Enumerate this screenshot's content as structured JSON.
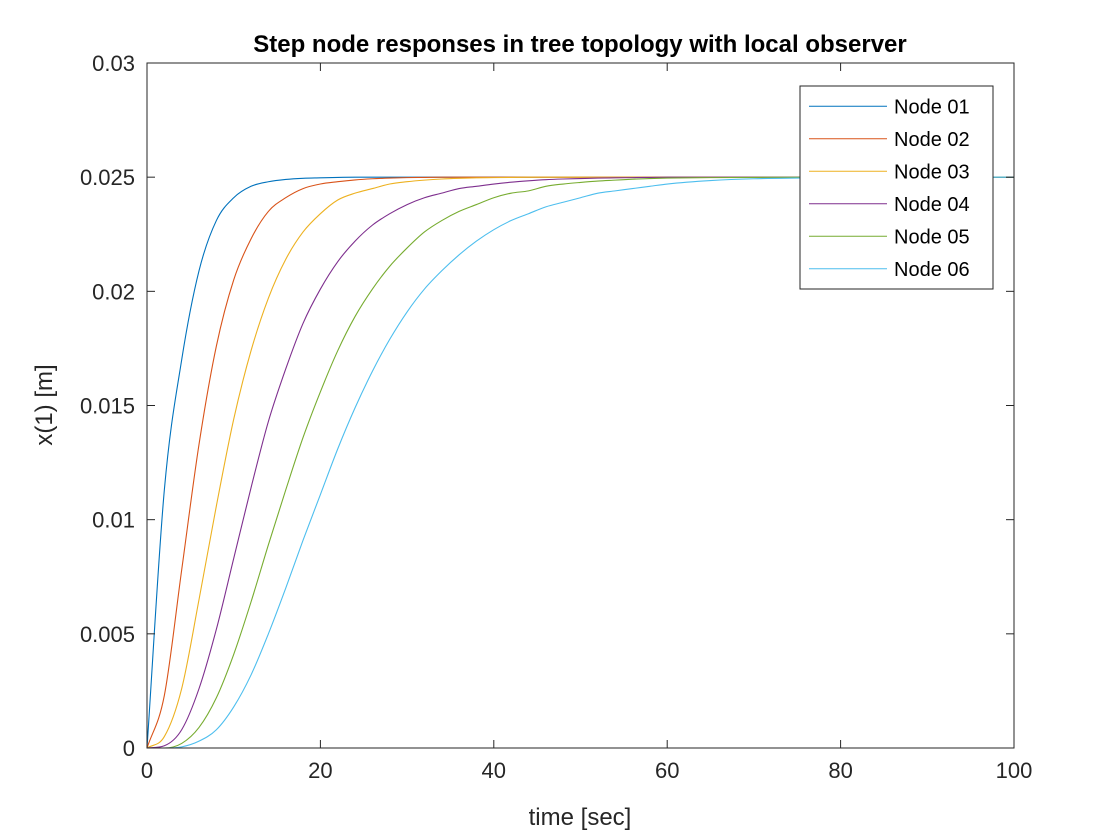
{
  "chart_data": {
    "type": "line",
    "title": "Step node responses in tree topology with local observer",
    "xlabel": "time [sec]",
    "ylabel": "x(1) [m]",
    "xlim": [
      0,
      100
    ],
    "ylim": [
      0,
      0.03
    ],
    "x_ticks": [
      0,
      20,
      40,
      60,
      80,
      100
    ],
    "x_tick_labels": [
      "0",
      "20",
      "40",
      "60",
      "80",
      "100"
    ],
    "y_ticks": [
      0,
      0.005,
      0.01,
      0.015,
      0.02,
      0.025,
      0.03
    ],
    "y_tick_labels": [
      "0",
      "0.005",
      "0.01",
      "0.015",
      "0.02",
      "0.025",
      "0.03"
    ],
    "grid": false,
    "legend_position": "top-right",
    "x": [
      0,
      2,
      4,
      6,
      8,
      10,
      12,
      14,
      16,
      18,
      20,
      22,
      24,
      26,
      28,
      30,
      32,
      34,
      36,
      38,
      40,
      42,
      44,
      46,
      48,
      50,
      52,
      54,
      56,
      58,
      60,
      65,
      70,
      80,
      90,
      100
    ],
    "series": [
      {
        "name": "Node 01",
        "color": "#0072BD",
        "values": [
          0,
          0.0113,
          0.017,
          0.0209,
          0.0231,
          0.0241,
          0.0246,
          0.0248,
          0.0249,
          0.02495,
          0.02497,
          0.02499,
          0.025,
          0.025,
          0.025,
          0.025,
          0.025,
          0.025,
          0.025,
          0.025,
          0.025,
          0.025,
          0.025,
          0.025,
          0.025,
          0.025,
          0.025,
          0.025,
          0.025,
          0.025,
          0.025,
          0.025,
          0.025,
          0.025,
          0.025,
          0.025
        ]
      },
      {
        "name": "Node 02",
        "color": "#D95319",
        "values": [
          0,
          0.0023,
          0.0078,
          0.0133,
          0.0176,
          0.0205,
          0.0223,
          0.0235,
          0.0241,
          0.0245,
          0.0247,
          0.0248,
          0.02488,
          0.02493,
          0.02496,
          0.02498,
          0.02499,
          0.025,
          0.025,
          0.025,
          0.025,
          0.025,
          0.025,
          0.025,
          0.025,
          0.025,
          0.025,
          0.025,
          0.025,
          0.025,
          0.025,
          0.025,
          0.025,
          0.025,
          0.025,
          0.025
        ]
      },
      {
        "name": "Node 03",
        "color": "#EDB120",
        "values": [
          0,
          0.0005,
          0.0026,
          0.0065,
          0.0106,
          0.0144,
          0.0174,
          0.0197,
          0.0214,
          0.0226,
          0.0234,
          0.024,
          0.0243,
          0.0245,
          0.0247,
          0.0248,
          0.02487,
          0.02492,
          0.02495,
          0.02497,
          0.02498,
          0.02499,
          0.025,
          0.025,
          0.025,
          0.025,
          0.025,
          0.025,
          0.025,
          0.025,
          0.025,
          0.025,
          0.025,
          0.025,
          0.025,
          0.025
        ]
      },
      {
        "name": "Node 04",
        "color": "#7E2F8E",
        "values": [
          0,
          0.0001,
          0.0008,
          0.0026,
          0.0052,
          0.0083,
          0.0114,
          0.0143,
          0.0166,
          0.0186,
          0.0201,
          0.0213,
          0.0222,
          0.0229,
          0.0234,
          0.0238,
          0.0241,
          0.0243,
          0.0245,
          0.0246,
          0.0247,
          0.02478,
          0.02484,
          0.02489,
          0.02492,
          0.02494,
          0.02496,
          0.02497,
          0.02498,
          0.02499,
          0.025,
          0.025,
          0.025,
          0.025,
          0.025,
          0.025
        ]
      },
      {
        "name": "Node 05",
        "color": "#77AC30",
        "values": [
          0,
          0,
          0.0002,
          0.0009,
          0.0022,
          0.0041,
          0.0064,
          0.0089,
          0.0113,
          0.0136,
          0.0156,
          0.0174,
          0.0189,
          0.0201,
          0.0211,
          0.0219,
          0.0226,
          0.0231,
          0.0235,
          0.0238,
          0.0241,
          0.0243,
          0.0244,
          0.0246,
          0.0247,
          0.02477,
          0.02483,
          0.02487,
          0.02491,
          0.02494,
          0.02496,
          0.02498,
          0.02499,
          0.025,
          0.025,
          0.025
        ]
      },
      {
        "name": "Node 06",
        "color": "#4DBEEE",
        "values": [
          0,
          0,
          5e-05,
          0.0003,
          0.0008,
          0.0018,
          0.0032,
          0.005,
          0.007,
          0.0091,
          0.0111,
          0.0131,
          0.0149,
          0.0165,
          0.0179,
          0.0191,
          0.0201,
          0.0209,
          0.0216,
          0.0222,
          0.0227,
          0.0231,
          0.0234,
          0.0237,
          0.0239,
          0.0241,
          0.0243,
          0.0244,
          0.0245,
          0.0246,
          0.0247,
          0.02485,
          0.02493,
          0.02498,
          0.025,
          0.025
        ]
      }
    ]
  }
}
